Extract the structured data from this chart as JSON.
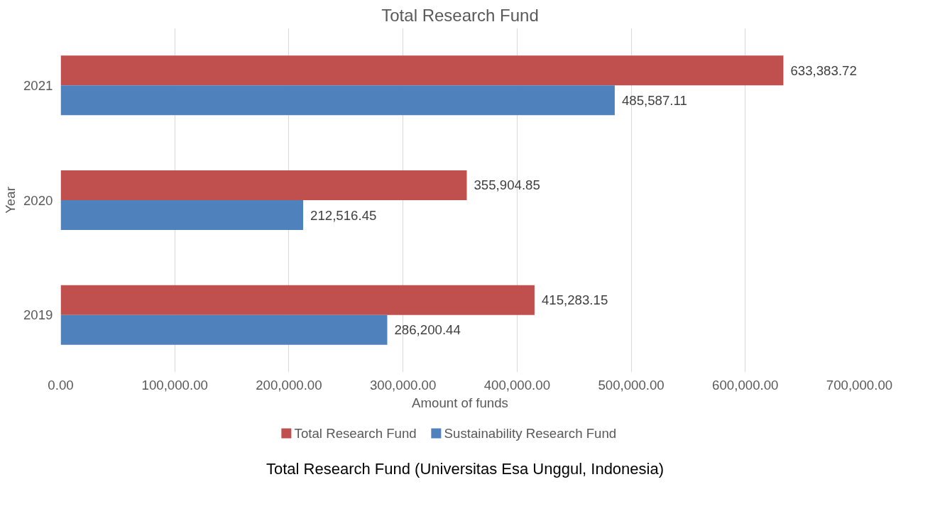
{
  "chart_data": {
    "type": "bar",
    "orientation": "horizontal",
    "title": "Total Research Fund",
    "xlabel": "Amount of funds",
    "ylabel": "Year",
    "categories": [
      "2021",
      "2020",
      "2019"
    ],
    "series": [
      {
        "name": "Total Research Fund",
        "color": "#c0504d",
        "values": [
          633383.72,
          355904.85,
          415283.15
        ],
        "value_labels": [
          "633,383.72",
          "355,904.85",
          "415,283.15"
        ]
      },
      {
        "name": "Sustainability Research Fund",
        "color": "#4f81bd",
        "values": [
          485587.11,
          212516.45,
          286200.44
        ],
        "value_labels": [
          "485,587.11",
          "212,516.45",
          "286,200.44"
        ]
      }
    ],
    "xlim": [
      0,
      700000
    ],
    "xticks": [
      {
        "value": 0,
        "label": "0.00"
      },
      {
        "value": 100000,
        "label": "100,000.00"
      },
      {
        "value": 200000,
        "label": "200,000.00"
      },
      {
        "value": 300000,
        "label": "300,000.00"
      },
      {
        "value": 400000,
        "label": "400,000.00"
      },
      {
        "value": 500000,
        "label": "500,000.00"
      },
      {
        "value": 600000,
        "label": "600,000.00"
      },
      {
        "value": 700000,
        "label": "700,000.00"
      }
    ],
    "grid": "x",
    "legend": "bottom",
    "annotations": [
      "Total Research Fund (Universitas Esa Unggul, Indonesia)"
    ]
  }
}
